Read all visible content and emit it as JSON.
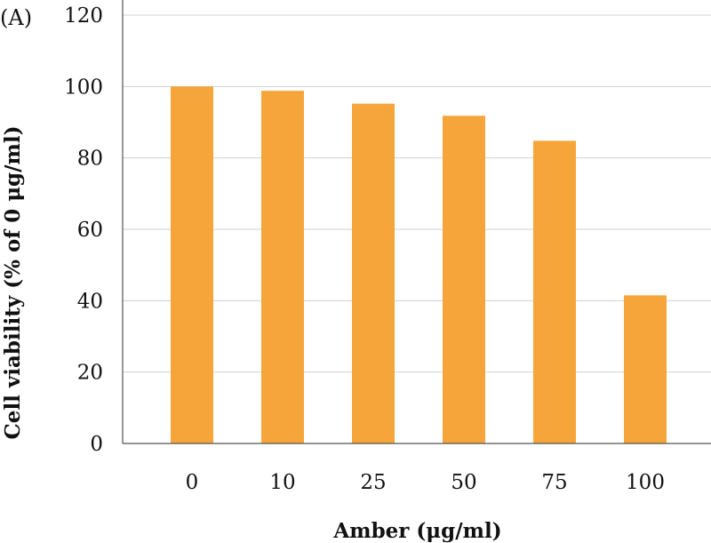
{
  "chart_data": {
    "type": "bar",
    "panel_label": "(A)",
    "categories": [
      "0",
      "10",
      "25",
      "50",
      "75",
      "100"
    ],
    "values": [
      100,
      98.8,
      95.2,
      91.8,
      84.8,
      41.5
    ],
    "xlabel": "Amber (μg/ml)",
    "ylabel": "Cell viability (% of 0 μg/ml)",
    "ylim": [
      0,
      120
    ],
    "yticks": [
      "0",
      "20",
      "40",
      "60",
      "80",
      "100",
      "120"
    ],
    "grid": true,
    "bar_color": "#F6A53A",
    "grid_color": "#D0D0D0",
    "axis_color": "#555555"
  }
}
